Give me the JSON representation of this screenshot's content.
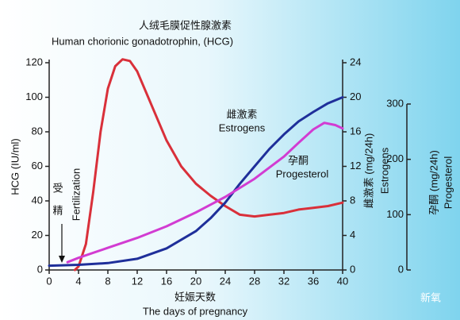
{
  "chart_data": {
    "type": "line",
    "title": "人绒毛膜促性腺激素",
    "subtitle": "Human chorionic gonadotrophin, (HCG)",
    "xlabel": "妊娠天数",
    "xlabel_en": "The days of pregnancy",
    "ylabel": "HCG (IU/ml)",
    "y2label": "雌激素 (mg/24h)",
    "y2label_en": "Estrogens",
    "y3label": "孕酮 (mg/24h)",
    "y3label_en": "Progesterol",
    "xlim": [
      0,
      40
    ],
    "xticks": [
      0,
      4,
      8,
      12,
      16,
      20,
      24,
      28,
      32,
      36,
      40
    ],
    "ylim": [
      0,
      120
    ],
    "yticks": [
      0,
      20,
      40,
      60,
      80,
      100,
      120
    ],
    "y2lim": [
      0,
      24
    ],
    "y2ticks": [
      0,
      4,
      8,
      12,
      16,
      20,
      24
    ],
    "y3lim": [
      0,
      300
    ],
    "y3ticks": [
      0,
      100,
      200,
      300
    ],
    "annotations": [
      "受",
      "精",
      "Fertilization",
      "雌激素",
      "Estrogens",
      "孕酮",
      "Progesterol"
    ],
    "watermark": "新氧",
    "series": [
      {
        "name": "HCG",
        "color": "#d9303a",
        "axis": "y",
        "x": [
          3.5,
          4,
          5,
          6,
          7,
          8,
          9,
          10,
          11,
          12,
          14,
          16,
          18,
          20,
          22,
          24,
          26,
          28,
          30,
          32,
          34,
          36,
          38,
          40
        ],
        "values": [
          0,
          2,
          15,
          45,
          80,
          105,
          118,
          122,
          121,
          115,
          95,
          75,
          60,
          50,
          43,
          37,
          32,
          31,
          32,
          33,
          35,
          36,
          37,
          39
        ]
      },
      {
        "name": "Estrogens",
        "color": "#1f2f9a",
        "axis": "y2",
        "x": [
          0,
          4,
          8,
          12,
          16,
          20,
          22,
          24,
          26,
          28,
          30,
          32,
          34,
          36,
          38,
          40
        ],
        "values": [
          0.5,
          0.6,
          0.8,
          1.3,
          2.5,
          4.5,
          6,
          7.8,
          10,
          12,
          14,
          15.7,
          17.2,
          18.3,
          19.3,
          20
        ]
      },
      {
        "name": "Progesterol",
        "color": "#d23cd2",
        "axis": "y3",
        "x": [
          2.5,
          4,
          8,
          12,
          16,
          20,
          24,
          28,
          32,
          34,
          36,
          37.5,
          39,
          40
        ],
        "values": [
          14,
          22,
          40,
          58,
          79,
          104,
          132,
          165,
          205,
          230,
          254,
          266,
          262,
          256
        ]
      }
    ]
  }
}
